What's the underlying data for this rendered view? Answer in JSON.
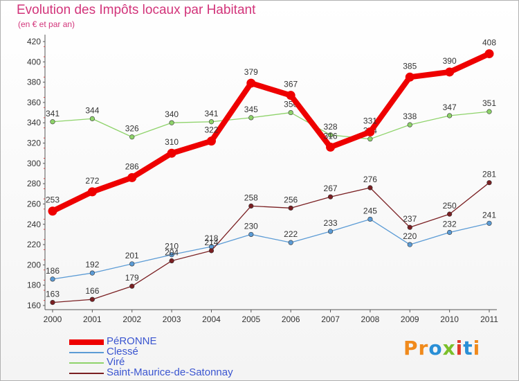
{
  "header": {
    "title": "Evolution des Impôts locaux par Habitant",
    "subtitle": "(en € et par an)"
  },
  "logo": {
    "text": "Proxiti",
    "letters": [
      "P",
      "r",
      "o",
      "x",
      "i",
      "t",
      "i"
    ],
    "colors": [
      "#f08a1c",
      "#f08a1c",
      "#2a8fd6",
      "#7bbf2a",
      "#e03a2a",
      "#2a8fd6",
      "#f08a1c"
    ]
  },
  "chart_data": {
    "type": "line",
    "title": "Evolution des Impôts locaux par Habitant",
    "subtitle": "(en € et par an)",
    "xlabel": "",
    "ylabel": "",
    "x": [
      "2000",
      "2001",
      "2002",
      "2003",
      "2004",
      "2005",
      "2006",
      "2007",
      "2008",
      "2009",
      "2010",
      "2011"
    ],
    "ylim": [
      160,
      420
    ],
    "yticks": [
      160,
      180,
      200,
      220,
      240,
      260,
      280,
      300,
      320,
      340,
      360,
      380,
      400,
      420
    ],
    "grid": false,
    "legend_position": "bottom-left",
    "series": [
      {
        "name": "PéRONNE",
        "color": "#ee0000",
        "values": [
          253,
          272,
          286,
          310,
          322,
          379,
          367,
          316,
          331,
          385,
          390,
          408
        ],
        "labels": [
          "253",
          "272",
          "286",
          "310",
          "322",
          "379",
          "367",
          "316",
          "331",
          "385",
          "390",
          "408"
        ]
      },
      {
        "name": "Clessé",
        "color": "#5b9bd5",
        "values": [
          186,
          192,
          201,
          210,
          218,
          230,
          222,
          233,
          245,
          220,
          232,
          241
        ],
        "labels": [
          "186",
          "192",
          "201",
          "210",
          "218",
          "230",
          "222",
          "233",
          "245",
          "220",
          "232",
          "241"
        ]
      },
      {
        "name": "Viré",
        "color": "#8ed36a",
        "values": [
          341,
          344,
          326,
          340,
          341,
          345,
          350,
          328,
          324,
          338,
          347,
          351
        ],
        "labels": [
          "341",
          "344",
          "326",
          "340",
          "341",
          "345",
          "350",
          "328",
          "324",
          "338",
          "347",
          "351"
        ]
      },
      {
        "name": "Saint-Maurice-de-Satonnay",
        "color": "#7a1f22",
        "values": [
          163,
          166,
          179,
          204,
          214,
          258,
          256,
          267,
          276,
          237,
          250,
          281
        ],
        "labels": [
          "163",
          "166",
          "179",
          "204",
          "214",
          "258",
          "256",
          "267",
          "276",
          "237",
          "250",
          "281"
        ]
      }
    ]
  }
}
